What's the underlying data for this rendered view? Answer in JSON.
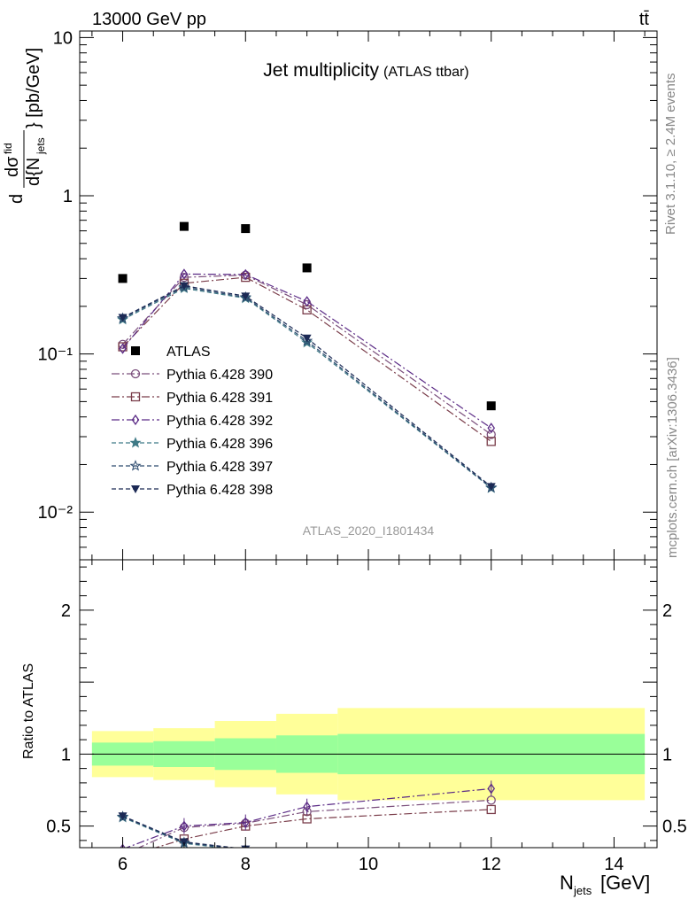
{
  "header": {
    "energy_label": "13000 GeV pp",
    "process_label": "tt̄"
  },
  "side_labels": {
    "rivet": "Rivet 3.1.10, ≥ 2.4M events",
    "mcplots": "mcplots.cern.ch [arXiv:1306.3436]"
  },
  "chart_data": [
    {
      "type": "line",
      "panel": "main",
      "title": "Jet multiplicity",
      "subtitle": "(ATLAS ttbar)",
      "analysis_id": "ATLAS_2020_I1801434",
      "xlabel": "N_jets [GeV]",
      "ylabel": "d dσ^fid / d{N_jets} [pb/GeV]",
      "x_scale": "linear",
      "y_scale": "log",
      "xlim": [
        5.3,
        14.7
      ],
      "ylim": [
        0.005,
        11
      ],
      "x_ticks": [
        6,
        8,
        10,
        12,
        14
      ],
      "y_ticks": [
        {
          "value": 10,
          "label": "10"
        },
        {
          "value": 1,
          "label": "1"
        },
        {
          "value": 0.1,
          "label": "10⁻¹"
        },
        {
          "value": 0.01,
          "label": "10⁻²"
        }
      ],
      "legend_position": "center-left",
      "reference": {
        "name": "ATLAS",
        "color": "#000000",
        "marker": "square",
        "x": [
          6,
          7,
          8,
          9,
          12
        ],
        "y": [
          0.3,
          0.64,
          0.62,
          0.35,
          0.047
        ]
      },
      "series": [
        {
          "name": "Pythia 6.428 390",
          "color": "#7b4f7c",
          "marker": "circle",
          "dash": "dashdot",
          "x": [
            6,
            7,
            8,
            9,
            12
          ],
          "y": [
            0.115,
            0.305,
            0.315,
            0.205,
            0.031
          ]
        },
        {
          "name": "Pythia 6.428 391",
          "color": "#7a3d4a",
          "marker": "square-open",
          "dash": "dashdot",
          "x": [
            6,
            7,
            8,
            9,
            12
          ],
          "y": [
            0.111,
            0.28,
            0.305,
            0.19,
            0.028
          ]
        },
        {
          "name": "Pythia 6.428 392",
          "color": "#5b2b86",
          "marker": "diamond-open",
          "dash": "dashdot",
          "x": [
            6,
            7,
            8,
            9,
            12
          ],
          "y": [
            0.108,
            0.32,
            0.318,
            0.215,
            0.034
          ]
        },
        {
          "name": "Pythia 6.428 396",
          "color": "#3f7a86",
          "marker": "star-filled",
          "dash": "dashed",
          "x": [
            6,
            7,
            8,
            9,
            12
          ],
          "y": [
            0.165,
            0.26,
            0.225,
            0.118,
            0.0142
          ]
        },
        {
          "name": "Pythia 6.428 397",
          "color": "#2c4a6e",
          "marker": "star-open",
          "dash": "dashed",
          "x": [
            6,
            7,
            8,
            9,
            12
          ],
          "y": [
            0.168,
            0.265,
            0.228,
            0.121,
            0.0143
          ]
        },
        {
          "name": "Pythia 6.428 398",
          "color": "#1c2a55",
          "marker": "triangle-down",
          "dash": "dashed",
          "x": [
            6,
            7,
            8,
            9,
            12
          ],
          "y": [
            0.17,
            0.27,
            0.232,
            0.126,
            0.0145
          ]
        }
      ]
    },
    {
      "type": "line",
      "panel": "ratio",
      "ylabel": "Ratio to ATLAS",
      "xlabel": "N_jets [GeV]",
      "xlim": [
        5.3,
        14.7
      ],
      "ylim": [
        0.35,
        2.35
      ],
      "x_ticks": [
        6,
        8,
        10,
        12,
        14
      ],
      "y_ticks": [
        0.5,
        1,
        2
      ],
      "bands": [
        {
          "name": "total",
          "color": "#ffff99",
          "bins": [
            {
              "x": [
                5.5,
                6.5
              ],
              "lo": 0.84,
              "hi": 1.16
            },
            {
              "x": [
                6.5,
                7.5
              ],
              "lo": 0.82,
              "hi": 1.18
            },
            {
              "x": [
                7.5,
                8.5
              ],
              "lo": 0.77,
              "hi": 1.23
            },
            {
              "x": [
                8.5,
                9.5
              ],
              "lo": 0.72,
              "hi": 1.28
            },
            {
              "x": [
                9.5,
                14.5
              ],
              "lo": 0.68,
              "hi": 1.32
            }
          ]
        },
        {
          "name": "stat",
          "color": "#99ff99",
          "bins": [
            {
              "x": [
                5.5,
                6.5
              ],
              "lo": 0.92,
              "hi": 1.08
            },
            {
              "x": [
                6.5,
                7.5
              ],
              "lo": 0.91,
              "hi": 1.09
            },
            {
              "x": [
                7.5,
                8.5
              ],
              "lo": 0.89,
              "hi": 1.11
            },
            {
              "x": [
                8.5,
                9.5
              ],
              "lo": 0.87,
              "hi": 1.13
            },
            {
              "x": [
                9.5,
                14.5
              ],
              "lo": 0.86,
              "hi": 1.14
            }
          ]
        }
      ],
      "series": [
        {
          "name": "Pythia 6.428 390",
          "x": [
            6,
            7,
            8,
            9,
            12
          ],
          "y": [
            0.3,
            0.49,
            0.52,
            0.6,
            0.68
          ]
        },
        {
          "name": "Pythia 6.428 391",
          "x": [
            6,
            7,
            8,
            9,
            12
          ],
          "y": [
            0.28,
            0.41,
            0.5,
            0.55,
            0.615
          ]
        },
        {
          "name": "Pythia 6.428 392",
          "x": [
            6,
            7,
            8,
            9,
            12
          ],
          "y": [
            0.34,
            0.5,
            0.525,
            0.635,
            0.76
          ]
        },
        {
          "name": "Pythia 6.428 396",
          "x": [
            6,
            7,
            8,
            9,
            12
          ],
          "y": [
            0.56,
            0.38,
            0.33,
            0.3,
            0.3
          ]
        },
        {
          "name": "Pythia 6.428 397",
          "x": [
            6,
            7,
            8,
            9,
            12
          ],
          "y": [
            0.565,
            0.385,
            0.335,
            0.3,
            0.3
          ]
        },
        {
          "name": "Pythia 6.428 398",
          "x": [
            6,
            7,
            8,
            9,
            12
          ],
          "y": [
            0.57,
            0.39,
            0.34,
            0.3,
            0.3
          ]
        }
      ]
    }
  ]
}
